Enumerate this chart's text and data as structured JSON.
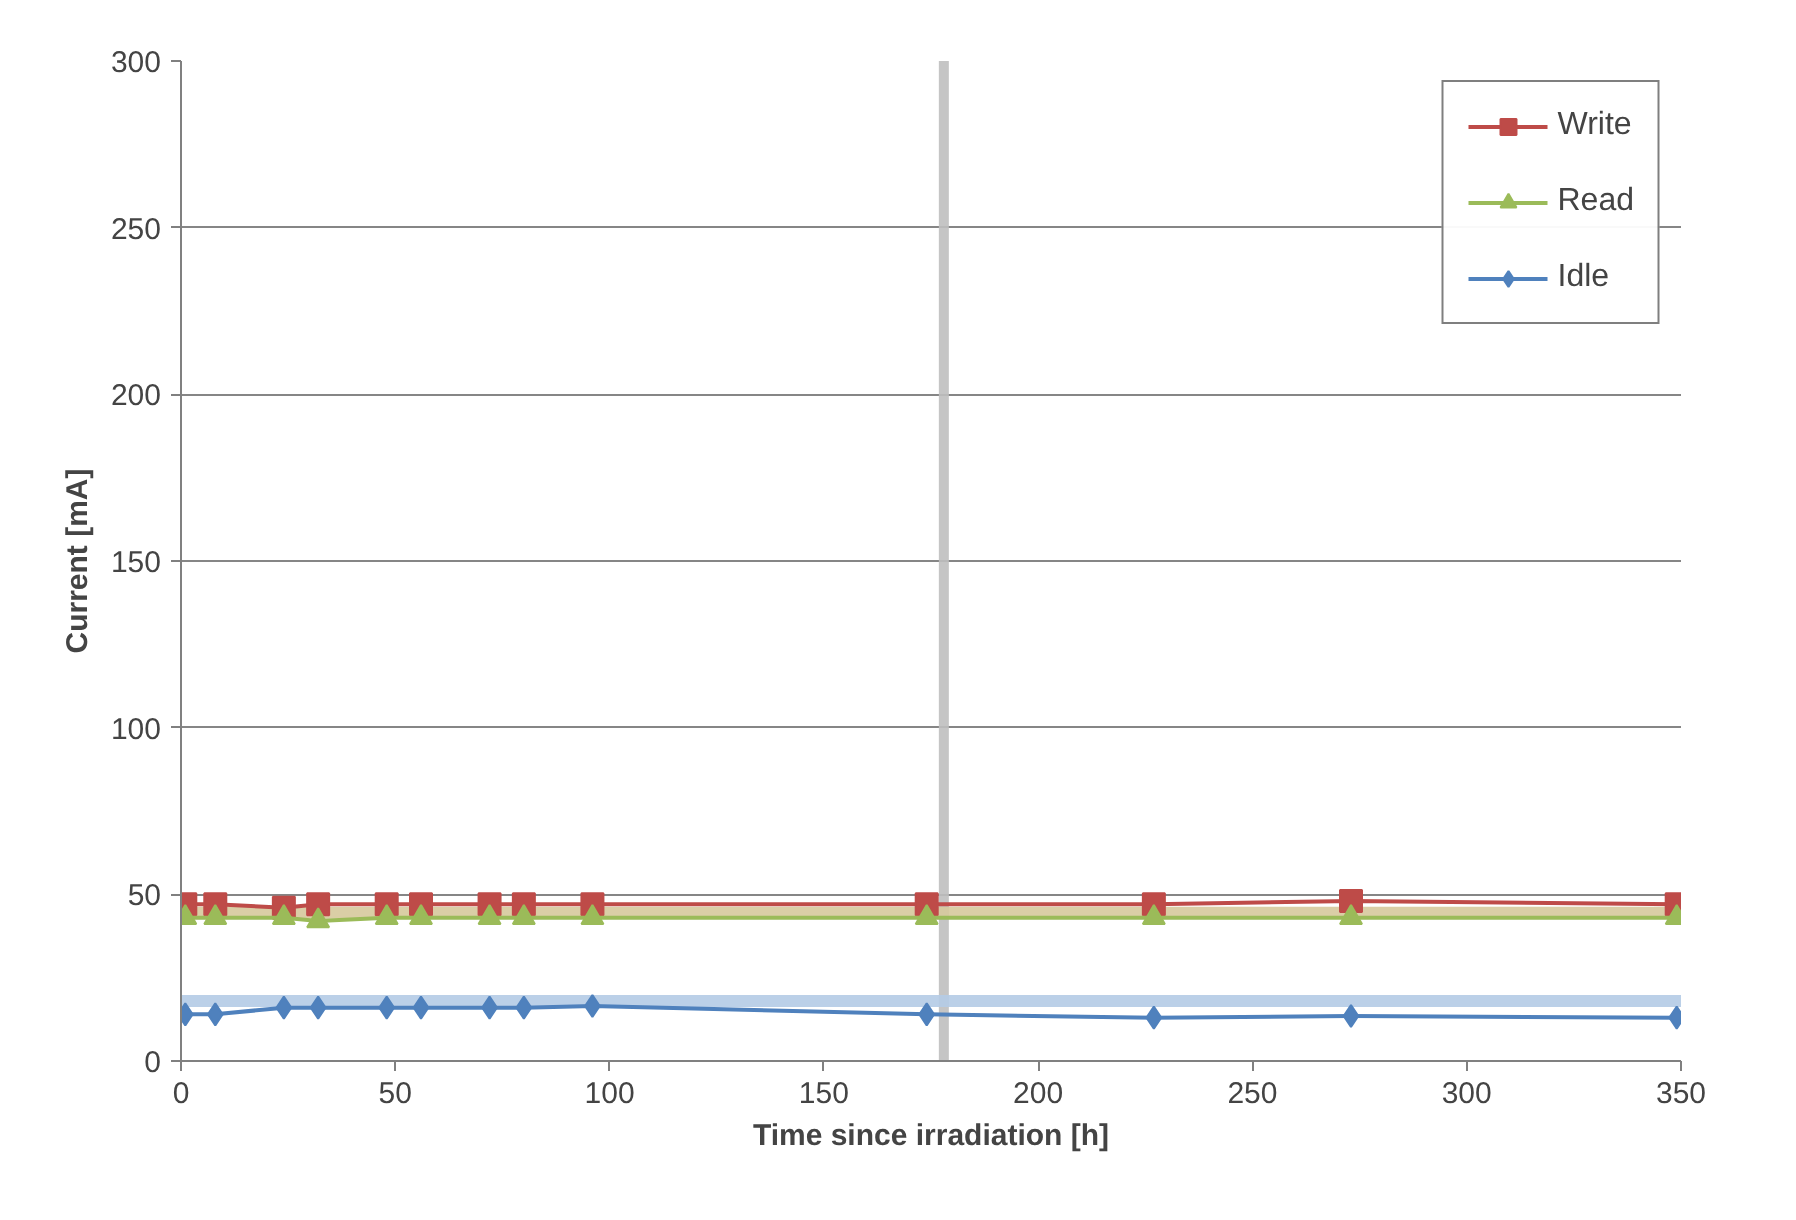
{
  "chart_data": {
    "type": "line",
    "xlabel": "Time since irradiation [h]",
    "ylabel": "Current [mA]",
    "x": [
      1,
      8,
      24,
      32,
      48,
      56,
      72,
      80,
      96,
      174,
      227,
      273,
      349
    ],
    "series": [
      {
        "name": "Write",
        "color": "#be4b48",
        "marker": "square",
        "values": [
          47,
          47,
          46,
          47,
          47,
          47,
          47,
          47,
          47,
          47,
          47,
          48,
          47
        ]
      },
      {
        "name": "Read",
        "color": "#9bbb59",
        "marker": "triangle",
        "values": [
          43,
          43,
          43,
          42,
          43,
          43,
          43,
          43,
          43,
          43,
          43,
          43,
          43
        ]
      },
      {
        "name": "Idle",
        "color": "#4f81bd",
        "marker": "diamond",
        "values": [
          14,
          14,
          16,
          16,
          16,
          16,
          16,
          16,
          16.5,
          14,
          13,
          13.5,
          13
        ]
      }
    ],
    "ref_lines": [
      {
        "axis": "x",
        "value": 178,
        "color": "#bfbfbf"
      },
      {
        "axis": "y",
        "value": 18,
        "color": "#b4cbe6"
      },
      {
        "axis": "y",
        "value": 44.5,
        "color": "#d6c99c"
      }
    ],
    "xlim": [
      0,
      350
    ],
    "xticks": [
      0,
      50,
      100,
      150,
      200,
      250,
      300,
      350
    ],
    "ylim": [
      0,
      300
    ],
    "yticks": [
      0,
      50,
      100,
      150,
      200,
      250,
      300
    ],
    "grid": "y",
    "legend": "top right"
  }
}
